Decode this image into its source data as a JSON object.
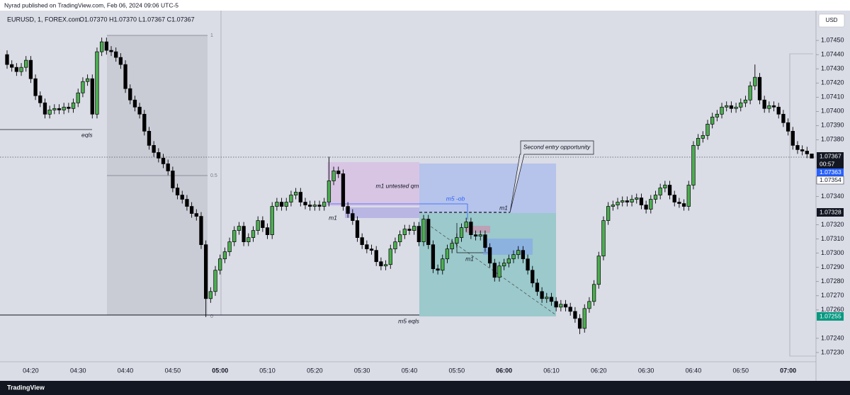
{
  "header": {
    "publisher": "Nyrad published on TradingView.com, Feb 06, 2024 09:06 UTC-5",
    "symbol": "EURUSD, 1, FOREX.com",
    "ohlc_legend": "O1.07370 H1.07370 L1.07367 C1.07367",
    "currency": "USD"
  },
  "annotations": {
    "eqls": "eqls",
    "fib_top": "1",
    "fib_mid": "0.5",
    "fib_bottom": "0",
    "m1_untested_qm": "m1 untested qm",
    "m5_ob": "m5 -ob",
    "m1_left": "m1",
    "m1_dashed": "m1",
    "m1_low": "m1",
    "m5_eqls": "m5 eqls",
    "callout": "Second entry opportunity"
  },
  "price_labels": {
    "last": "1.07367",
    "countdown": "00:57",
    "blue": "1.07363",
    "white": "1.07354",
    "line": "1.07328",
    "green": "1.07255"
  },
  "footer": {
    "brand": "TradingView"
  },
  "chart_data": {
    "type": "candlestick",
    "ylim": [
      1.07224,
      1.07471
    ],
    "yticks": [
      {
        "value": 1.0745,
        "label": "1.07450"
      },
      {
        "value": 1.0744,
        "label": "1.07440"
      },
      {
        "value": 1.0743,
        "label": "1.07430"
      },
      {
        "value": 1.0742,
        "label": "1.07420"
      },
      {
        "value": 1.0741,
        "label": "1.07410"
      },
      {
        "value": 1.074,
        "label": "1.07400"
      },
      {
        "value": 1.0739,
        "label": "1.07390"
      },
      {
        "value": 1.0738,
        "label": "1.07380"
      },
      {
        "value": 1.0734,
        "label": "1.07340"
      },
      {
        "value": 1.0732,
        "label": "1.07320"
      },
      {
        "value": 1.0731,
        "label": "1.07310"
      },
      {
        "value": 1.073,
        "label": "1.07300"
      },
      {
        "value": 1.0729,
        "label": "1.07290"
      },
      {
        "value": 1.0728,
        "label": "1.07280"
      },
      {
        "value": 1.0727,
        "label": "1.07270"
      },
      {
        "value": 1.0726,
        "label": "1.07260"
      },
      {
        "value": 1.0724,
        "label": "1.07240"
      },
      {
        "value": 1.0723,
        "label": "1.07230"
      }
    ],
    "xticks": [
      "04:20",
      "04:30",
      "04:40",
      "04:50",
      "05:00",
      "05:10",
      "05:20",
      "05:30",
      "05:40",
      "05:50",
      "06:00",
      "06:10",
      "06:20",
      "06:30",
      "06:40",
      "06:50",
      "07:00"
    ],
    "up_color": "#4caf50",
    "down_color": "#000000",
    "x": [
      "04:15",
      "04:16",
      "04:17",
      "04:18",
      "04:19",
      "04:20",
      "04:21",
      "04:22",
      "04:23",
      "04:24",
      "04:25",
      "04:26",
      "04:27",
      "04:28",
      "04:29",
      "04:30",
      "04:31",
      "04:32",
      "04:33",
      "04:34",
      "04:35",
      "04:36",
      "04:37",
      "04:38",
      "04:39",
      "04:40",
      "04:41",
      "04:42",
      "04:43",
      "04:44",
      "04:45",
      "04:46",
      "04:47",
      "04:48",
      "04:49",
      "04:50",
      "04:51",
      "04:52",
      "04:53",
      "04:54",
      "04:55",
      "04:56",
      "04:57",
      "04:58",
      "04:59",
      "05:00",
      "05:01",
      "05:02",
      "05:03",
      "05:04",
      "05:05",
      "05:06",
      "05:07",
      "05:08",
      "05:09",
      "05:10",
      "05:11",
      "05:12",
      "05:13",
      "05:14",
      "05:15",
      "05:16",
      "05:17",
      "05:18",
      "05:19",
      "05:20",
      "05:21",
      "05:22",
      "05:23",
      "05:24",
      "05:25",
      "05:26",
      "05:27",
      "05:28",
      "05:29",
      "05:30",
      "05:31",
      "05:32",
      "05:33",
      "05:34",
      "05:35",
      "05:36",
      "05:37",
      "05:38",
      "05:39",
      "05:40",
      "05:41",
      "05:42",
      "05:43",
      "05:44",
      "05:45",
      "05:46",
      "05:47",
      "05:48",
      "05:49",
      "05:50",
      "05:51",
      "05:52",
      "05:53",
      "05:54",
      "05:55",
      "05:56",
      "05:57",
      "05:58",
      "05:59",
      "06:00",
      "06:01",
      "06:02",
      "06:03",
      "06:04",
      "06:05",
      "06:06",
      "06:07",
      "06:08",
      "06:09",
      "06:10",
      "06:11",
      "06:12",
      "06:13",
      "06:14",
      "06:15",
      "06:16",
      "06:17",
      "06:18",
      "06:19",
      "06:20",
      "06:21",
      "06:22",
      "06:23",
      "06:24",
      "06:25",
      "06:26",
      "06:27",
      "06:28",
      "06:29",
      "06:30",
      "06:31",
      "06:32",
      "06:33",
      "06:34",
      "06:35",
      "06:36",
      "06:37",
      "06:38",
      "06:39",
      "06:40",
      "06:41",
      "06:42",
      "06:43",
      "06:44",
      "06:45",
      "06:46",
      "06:47",
      "06:48",
      "06:49",
      "06:50",
      "06:51",
      "06:52",
      "06:53",
      "06:54",
      "06:55",
      "06:56",
      "06:57",
      "06:58",
      "06:59",
      "07:00",
      "07:01",
      "07:02",
      "07:03",
      "07:04",
      "07:05"
    ],
    "candles": [
      [
        1.0744,
        1.07443,
        1.0743,
        1.07433
      ],
      [
        1.07433,
        1.07436,
        1.07428,
        1.07431
      ],
      [
        1.07431,
        1.07434,
        1.07425,
        1.07428
      ],
      [
        1.07428,
        1.07434,
        1.07425,
        1.07431
      ],
      [
        1.07431,
        1.07439,
        1.07428,
        1.07436
      ],
      [
        1.07436,
        1.07439,
        1.0742,
        1.07423
      ],
      [
        1.07423,
        1.07426,
        1.07408,
        1.07411
      ],
      [
        1.07411,
        1.07414,
        1.07403,
        1.07406
      ],
      [
        1.07406,
        1.07409,
        1.07395,
        1.07398
      ],
      [
        1.07398,
        1.07404,
        1.07395,
        1.07401
      ],
      [
        1.07401,
        1.07405,
        1.07398,
        1.07402
      ],
      [
        1.07402,
        1.07405,
        1.07398,
        1.07401
      ],
      [
        1.07401,
        1.07406,
        1.07398,
        1.07403
      ],
      [
        1.07403,
        1.07406,
        1.07399,
        1.07402
      ],
      [
        1.07402,
        1.07409,
        1.07399,
        1.07406
      ],
      [
        1.07406,
        1.07416,
        1.07403,
        1.07413
      ],
      [
        1.07413,
        1.07424,
        1.0741,
        1.07421
      ],
      [
        1.07421,
        1.07426,
        1.07418,
        1.07423
      ],
      [
        1.07423,
        1.07426,
        1.07395,
        1.07398
      ],
      [
        1.07398,
        1.07445,
        1.07395,
        1.07442
      ],
      [
        1.07442,
        1.07452,
        1.07439,
        1.07449
      ],
      [
        1.07449,
        1.07452,
        1.0744,
        1.07443
      ],
      [
        1.07443,
        1.07446,
        1.07439,
        1.07442
      ],
      [
        1.07442,
        1.07445,
        1.07435,
        1.07438
      ],
      [
        1.07438,
        1.07441,
        1.0743,
        1.07433
      ],
      [
        1.07433,
        1.07436,
        1.07413,
        1.07416
      ],
      [
        1.07416,
        1.07419,
        1.07405,
        1.07408
      ],
      [
        1.07408,
        1.07411,
        1.074,
        1.07403
      ],
      [
        1.07403,
        1.07406,
        1.07395,
        1.07398
      ],
      [
        1.07398,
        1.07401,
        1.07383,
        1.07386
      ],
      [
        1.07386,
        1.07389,
        1.07373,
        1.07376
      ],
      [
        1.07376,
        1.07379,
        1.07368,
        1.07371
      ],
      [
        1.07371,
        1.07374,
        1.07364,
        1.07367
      ],
      [
        1.07367,
        1.0737,
        1.0736,
        1.07363
      ],
      [
        1.07363,
        1.07366,
        1.07355,
        1.07358
      ],
      [
        1.07358,
        1.07361,
        1.07343,
        1.07346
      ],
      [
        1.07346,
        1.07349,
        1.07338,
        1.07341
      ],
      [
        1.07341,
        1.07344,
        1.07335,
        1.07338
      ],
      [
        1.07338,
        1.07341,
        1.0733,
        1.07333
      ],
      [
        1.07333,
        1.07336,
        1.07325,
        1.07328
      ],
      [
        1.07328,
        1.07331,
        1.07323,
        1.07326
      ],
      [
        1.07326,
        1.07329,
        1.07303,
        1.07306
      ],
      [
        1.07306,
        1.07309,
        1.07255,
        1.07268
      ],
      [
        1.07268,
        1.07276,
        1.07265,
        1.07273
      ],
      [
        1.07273,
        1.07291,
        1.0727,
        1.07288
      ],
      [
        1.07288,
        1.07299,
        1.07285,
        1.07296
      ],
      [
        1.07296,
        1.07304,
        1.07293,
        1.07301
      ],
      [
        1.07301,
        1.07311,
        1.07298,
        1.07308
      ],
      [
        1.07308,
        1.07319,
        1.07305,
        1.07316
      ],
      [
        1.07316,
        1.07322,
        1.07313,
        1.07319
      ],
      [
        1.07319,
        1.07322,
        1.07305,
        1.07308
      ],
      [
        1.07308,
        1.07314,
        1.07305,
        1.07311
      ],
      [
        1.07311,
        1.07319,
        1.07308,
        1.07316
      ],
      [
        1.07316,
        1.07326,
        1.07313,
        1.07323
      ],
      [
        1.07323,
        1.07326,
        1.07315,
        1.07318
      ],
      [
        1.07318,
        1.07321,
        1.0731,
        1.07313
      ],
      [
        1.07313,
        1.07336,
        1.0731,
        1.07333
      ],
      [
        1.07333,
        1.07339,
        1.0733,
        1.07336
      ],
      [
        1.07336,
        1.07339,
        1.0733,
        1.07333
      ],
      [
        1.07333,
        1.07339,
        1.0733,
        1.07336
      ],
      [
        1.07336,
        1.07344,
        1.07333,
        1.07341
      ],
      [
        1.07341,
        1.07346,
        1.07338,
        1.07343
      ],
      [
        1.07343,
        1.07346,
        1.07333,
        1.07336
      ],
      [
        1.07336,
        1.07339,
        1.07331,
        1.07334
      ],
      [
        1.07334,
        1.07337,
        1.0733,
        1.07333
      ],
      [
        1.07333,
        1.07337,
        1.0733,
        1.07334
      ],
      [
        1.07334,
        1.07337,
        1.0733,
        1.07333
      ],
      [
        1.07333,
        1.07339,
        1.0733,
        1.07336
      ],
      [
        1.07336,
        1.07368,
        1.07333,
        1.07351
      ],
      [
        1.07351,
        1.07361,
        1.07348,
        1.07358
      ],
      [
        1.07358,
        1.07361,
        1.07353,
        1.07356
      ],
      [
        1.07356,
        1.07359,
        1.0733,
        1.07333
      ],
      [
        1.07333,
        1.07336,
        1.07325,
        1.07328
      ],
      [
        1.07328,
        1.07331,
        1.0732,
        1.07323
      ],
      [
        1.07323,
        1.07326,
        1.07308,
        1.07311
      ],
      [
        1.07311,
        1.07314,
        1.07303,
        1.07306
      ],
      [
        1.07306,
        1.07309,
        1.073,
        1.07303
      ],
      [
        1.07303,
        1.07306,
        1.07299,
        1.07302
      ],
      [
        1.07302,
        1.07305,
        1.07291,
        1.07294
      ],
      [
        1.07294,
        1.07297,
        1.07288,
        1.07291
      ],
      [
        1.07291,
        1.07295,
        1.07288,
        1.07292
      ],
      [
        1.07292,
        1.07306,
        1.07289,
        1.07303
      ],
      [
        1.07303,
        1.07311,
        1.073,
        1.07308
      ],
      [
        1.07308,
        1.07316,
        1.07305,
        1.07313
      ],
      [
        1.07313,
        1.0732,
        1.0731,
        1.07317
      ],
      [
        1.07317,
        1.0732,
        1.07313,
        1.07316
      ],
      [
        1.07316,
        1.07322,
        1.07313,
        1.07319
      ],
      [
        1.07319,
        1.07322,
        1.07305,
        1.07308
      ],
      [
        1.07308,
        1.07327,
        1.07305,
        1.07324
      ],
      [
        1.07324,
        1.07327,
        1.07303,
        1.07306
      ],
      [
        1.07306,
        1.07309,
        1.07286,
        1.07289
      ],
      [
        1.07289,
        1.07292,
        1.07285,
        1.07288
      ],
      [
        1.07288,
        1.07299,
        1.07285,
        1.07296
      ],
      [
        1.07296,
        1.07306,
        1.07293,
        1.07303
      ],
      [
        1.07303,
        1.0731,
        1.073,
        1.07307
      ],
      [
        1.07307,
        1.07314,
        1.07304,
        1.07311
      ],
      [
        1.07311,
        1.07321,
        1.07308,
        1.07318
      ],
      [
        1.07318,
        1.07325,
        1.07315,
        1.07322
      ],
      [
        1.07322,
        1.07325,
        1.0731,
        1.07313
      ],
      [
        1.07313,
        1.07316,
        1.07309,
        1.07312
      ],
      [
        1.07312,
        1.07316,
        1.07309,
        1.07313
      ],
      [
        1.07313,
        1.07316,
        1.07301,
        1.07304
      ],
      [
        1.07304,
        1.07307,
        1.0729,
        1.07293
      ],
      [
        1.07293,
        1.07296,
        1.0728,
        1.07283
      ],
      [
        1.07283,
        1.07294,
        1.0728,
        1.07291
      ],
      [
        1.07291,
        1.07296,
        1.07288,
        1.07293
      ],
      [
        1.07293,
        1.07299,
        1.0729,
        1.07296
      ],
      [
        1.07296,
        1.07302,
        1.07293,
        1.07299
      ],
      [
        1.07299,
        1.07305,
        1.07296,
        1.07302
      ],
      [
        1.07302,
        1.07305,
        1.07293,
        1.07296
      ],
      [
        1.07296,
        1.07299,
        1.07285,
        1.07288
      ],
      [
        1.07288,
        1.07291,
        1.07276,
        1.07279
      ],
      [
        1.07279,
        1.07282,
        1.0727,
        1.07273
      ],
      [
        1.07273,
        1.07276,
        1.07265,
        1.07268
      ],
      [
        1.07268,
        1.07272,
        1.07265,
        1.07269
      ],
      [
        1.07269,
        1.07272,
        1.07263,
        1.07266
      ],
      [
        1.07266,
        1.07269,
        1.07259,
        1.07262
      ],
      [
        1.07262,
        1.07267,
        1.07259,
        1.07264
      ],
      [
        1.07264,
        1.07267,
        1.07259,
        1.07262
      ],
      [
        1.07262,
        1.07265,
        1.07256,
        1.07259
      ],
      [
        1.07259,
        1.07262,
        1.07251,
        1.07254
      ],
      [
        1.07254,
        1.07257,
        1.07243,
        1.07247
      ],
      [
        1.07247,
        1.07264,
        1.07244,
        1.07261
      ],
      [
        1.07261,
        1.07269,
        1.07258,
        1.07266
      ],
      [
        1.07266,
        1.07281,
        1.07263,
        1.07278
      ],
      [
        1.07278,
        1.07301,
        1.07275,
        1.07298
      ],
      [
        1.07298,
        1.07326,
        1.07295,
        1.07323
      ],
      [
        1.07323,
        1.07336,
        1.0732,
        1.07333
      ],
      [
        1.07333,
        1.07337,
        1.0733,
        1.07334
      ],
      [
        1.07334,
        1.07339,
        1.07331,
        1.07336
      ],
      [
        1.07336,
        1.0734,
        1.07333,
        1.07337
      ],
      [
        1.07337,
        1.0734,
        1.07333,
        1.07336
      ],
      [
        1.07336,
        1.07341,
        1.07333,
        1.07338
      ],
      [
        1.07338,
        1.07342,
        1.07335,
        1.07339
      ],
      [
        1.07339,
        1.07342,
        1.07331,
        1.07334
      ],
      [
        1.07334,
        1.07337,
        1.07328,
        1.07331
      ],
      [
        1.07331,
        1.07341,
        1.07328,
        1.07338
      ],
      [
        1.07338,
        1.07344,
        1.07335,
        1.07341
      ],
      [
        1.07341,
        1.07349,
        1.07338,
        1.07346
      ],
      [
        1.07346,
        1.07351,
        1.07343,
        1.07348
      ],
      [
        1.07348,
        1.07351,
        1.07338,
        1.07341
      ],
      [
        1.07341,
        1.07344,
        1.07333,
        1.07336
      ],
      [
        1.07336,
        1.07339,
        1.07332,
        1.07335
      ],
      [
        1.07335,
        1.07338,
        1.0733,
        1.07333
      ],
      [
        1.07333,
        1.07351,
        1.0733,
        1.07348
      ],
      [
        1.07348,
        1.07379,
        1.07345,
        1.07376
      ],
      [
        1.07376,
        1.07384,
        1.07373,
        1.07381
      ],
      [
        1.07381,
        1.07386,
        1.07378,
        1.07383
      ],
      [
        1.07383,
        1.07394,
        1.0738,
        1.07391
      ],
      [
        1.07391,
        1.07399,
        1.07388,
        1.07396
      ],
      [
        1.07396,
        1.07401,
        1.07393,
        1.07398
      ],
      [
        1.07398,
        1.07406,
        1.07395,
        1.07403
      ],
      [
        1.07403,
        1.07407,
        1.074,
        1.07404
      ],
      [
        1.07404,
        1.07407,
        1.07399,
        1.07402
      ],
      [
        1.07402,
        1.07406,
        1.07399,
        1.07403
      ],
      [
        1.07403,
        1.07409,
        1.074,
        1.07406
      ],
      [
        1.07406,
        1.07411,
        1.07403,
        1.07408
      ],
      [
        1.07408,
        1.07421,
        1.07405,
        1.07418
      ],
      [
        1.07418,
        1.07433,
        1.07415,
        1.07424
      ],
      [
        1.07424,
        1.07427,
        1.07405,
        1.07408
      ],
      [
        1.07408,
        1.07411,
        1.07399,
        1.07402
      ],
      [
        1.07402,
        1.07407,
        1.07399,
        1.07404
      ],
      [
        1.07404,
        1.07407,
        1.074,
        1.07403
      ],
      [
        1.07403,
        1.07406,
        1.07395,
        1.07398
      ],
      [
        1.07398,
        1.07401,
        1.07389,
        1.07392
      ],
      [
        1.07392,
        1.07395,
        1.07383,
        1.07386
      ],
      [
        1.07386,
        1.07389,
        1.07373,
        1.07376
      ],
      [
        1.07376,
        1.07379,
        1.0737,
        1.07373
      ],
      [
        1.07373,
        1.07376,
        1.07369,
        1.07372
      ],
      [
        1.07372,
        1.07375,
        1.07367,
        1.0737
      ],
      [
        1.0737,
        1.0737,
        1.07367,
        1.07367
      ]
    ]
  }
}
